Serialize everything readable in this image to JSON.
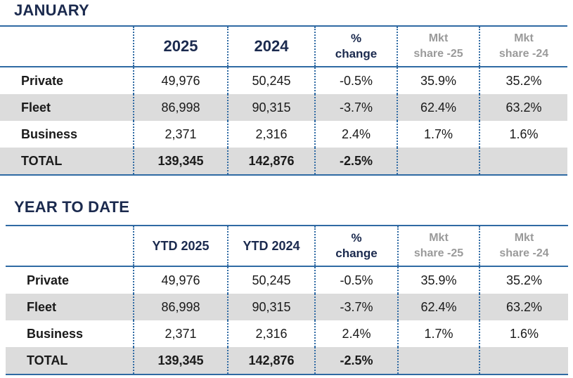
{
  "january": {
    "title": "JANUARY",
    "headers": [
      "2025",
      "2024",
      "%",
      "change",
      "Mkt",
      "share -25",
      "Mkt",
      "share -24"
    ],
    "rows": [
      {
        "label": "Private",
        "v2025": "49,976",
        "v2024": "50,245",
        "change": "-0.5%",
        "share25": "35.9%",
        "share24": "35.2%"
      },
      {
        "label": "Fleet",
        "v2025": "86,998",
        "v2024": "90,315",
        "change": "-3.7%",
        "share25": "62.4%",
        "share24": "63.2%"
      },
      {
        "label": "Business",
        "v2025": "2,371",
        "v2024": "2,316",
        "change": "2.4%",
        "share25": "1.7%",
        "share24": "1.6%"
      }
    ],
    "total": {
      "label": "TOTAL",
      "v2025": "139,345",
      "v2024": "142,876",
      "change": "-2.5%"
    }
  },
  "ytd": {
    "title": "YEAR TO DATE",
    "headers": [
      "YTD 2025",
      "YTD 2024",
      "%",
      "change",
      "Mkt",
      "share -25",
      "Mkt",
      "share -24"
    ],
    "rows": [
      {
        "label": "Private",
        "v2025": "49,976",
        "v2024": "50,245",
        "change": "-0.5%",
        "share25": "35.9%",
        "share24": "35.2%"
      },
      {
        "label": "Fleet",
        "v2025": "86,998",
        "v2024": "90,315",
        "change": "-3.7%",
        "share25": "62.4%",
        "share24": "63.2%"
      },
      {
        "label": "Business",
        "v2025": "2,371",
        "v2024": "2,316",
        "change": "2.4%",
        "share25": "1.7%",
        "share24": "1.6%"
      }
    ],
    "total": {
      "label": "TOTAL",
      "v2025": "139,345",
      "v2024": "142,876",
      "change": "-2.5%"
    }
  },
  "colors": {
    "accent": "#2f6aa3",
    "title": "#1b2a4e",
    "shade": "#dcdcdc",
    "muted": "#9a9a9a"
  }
}
